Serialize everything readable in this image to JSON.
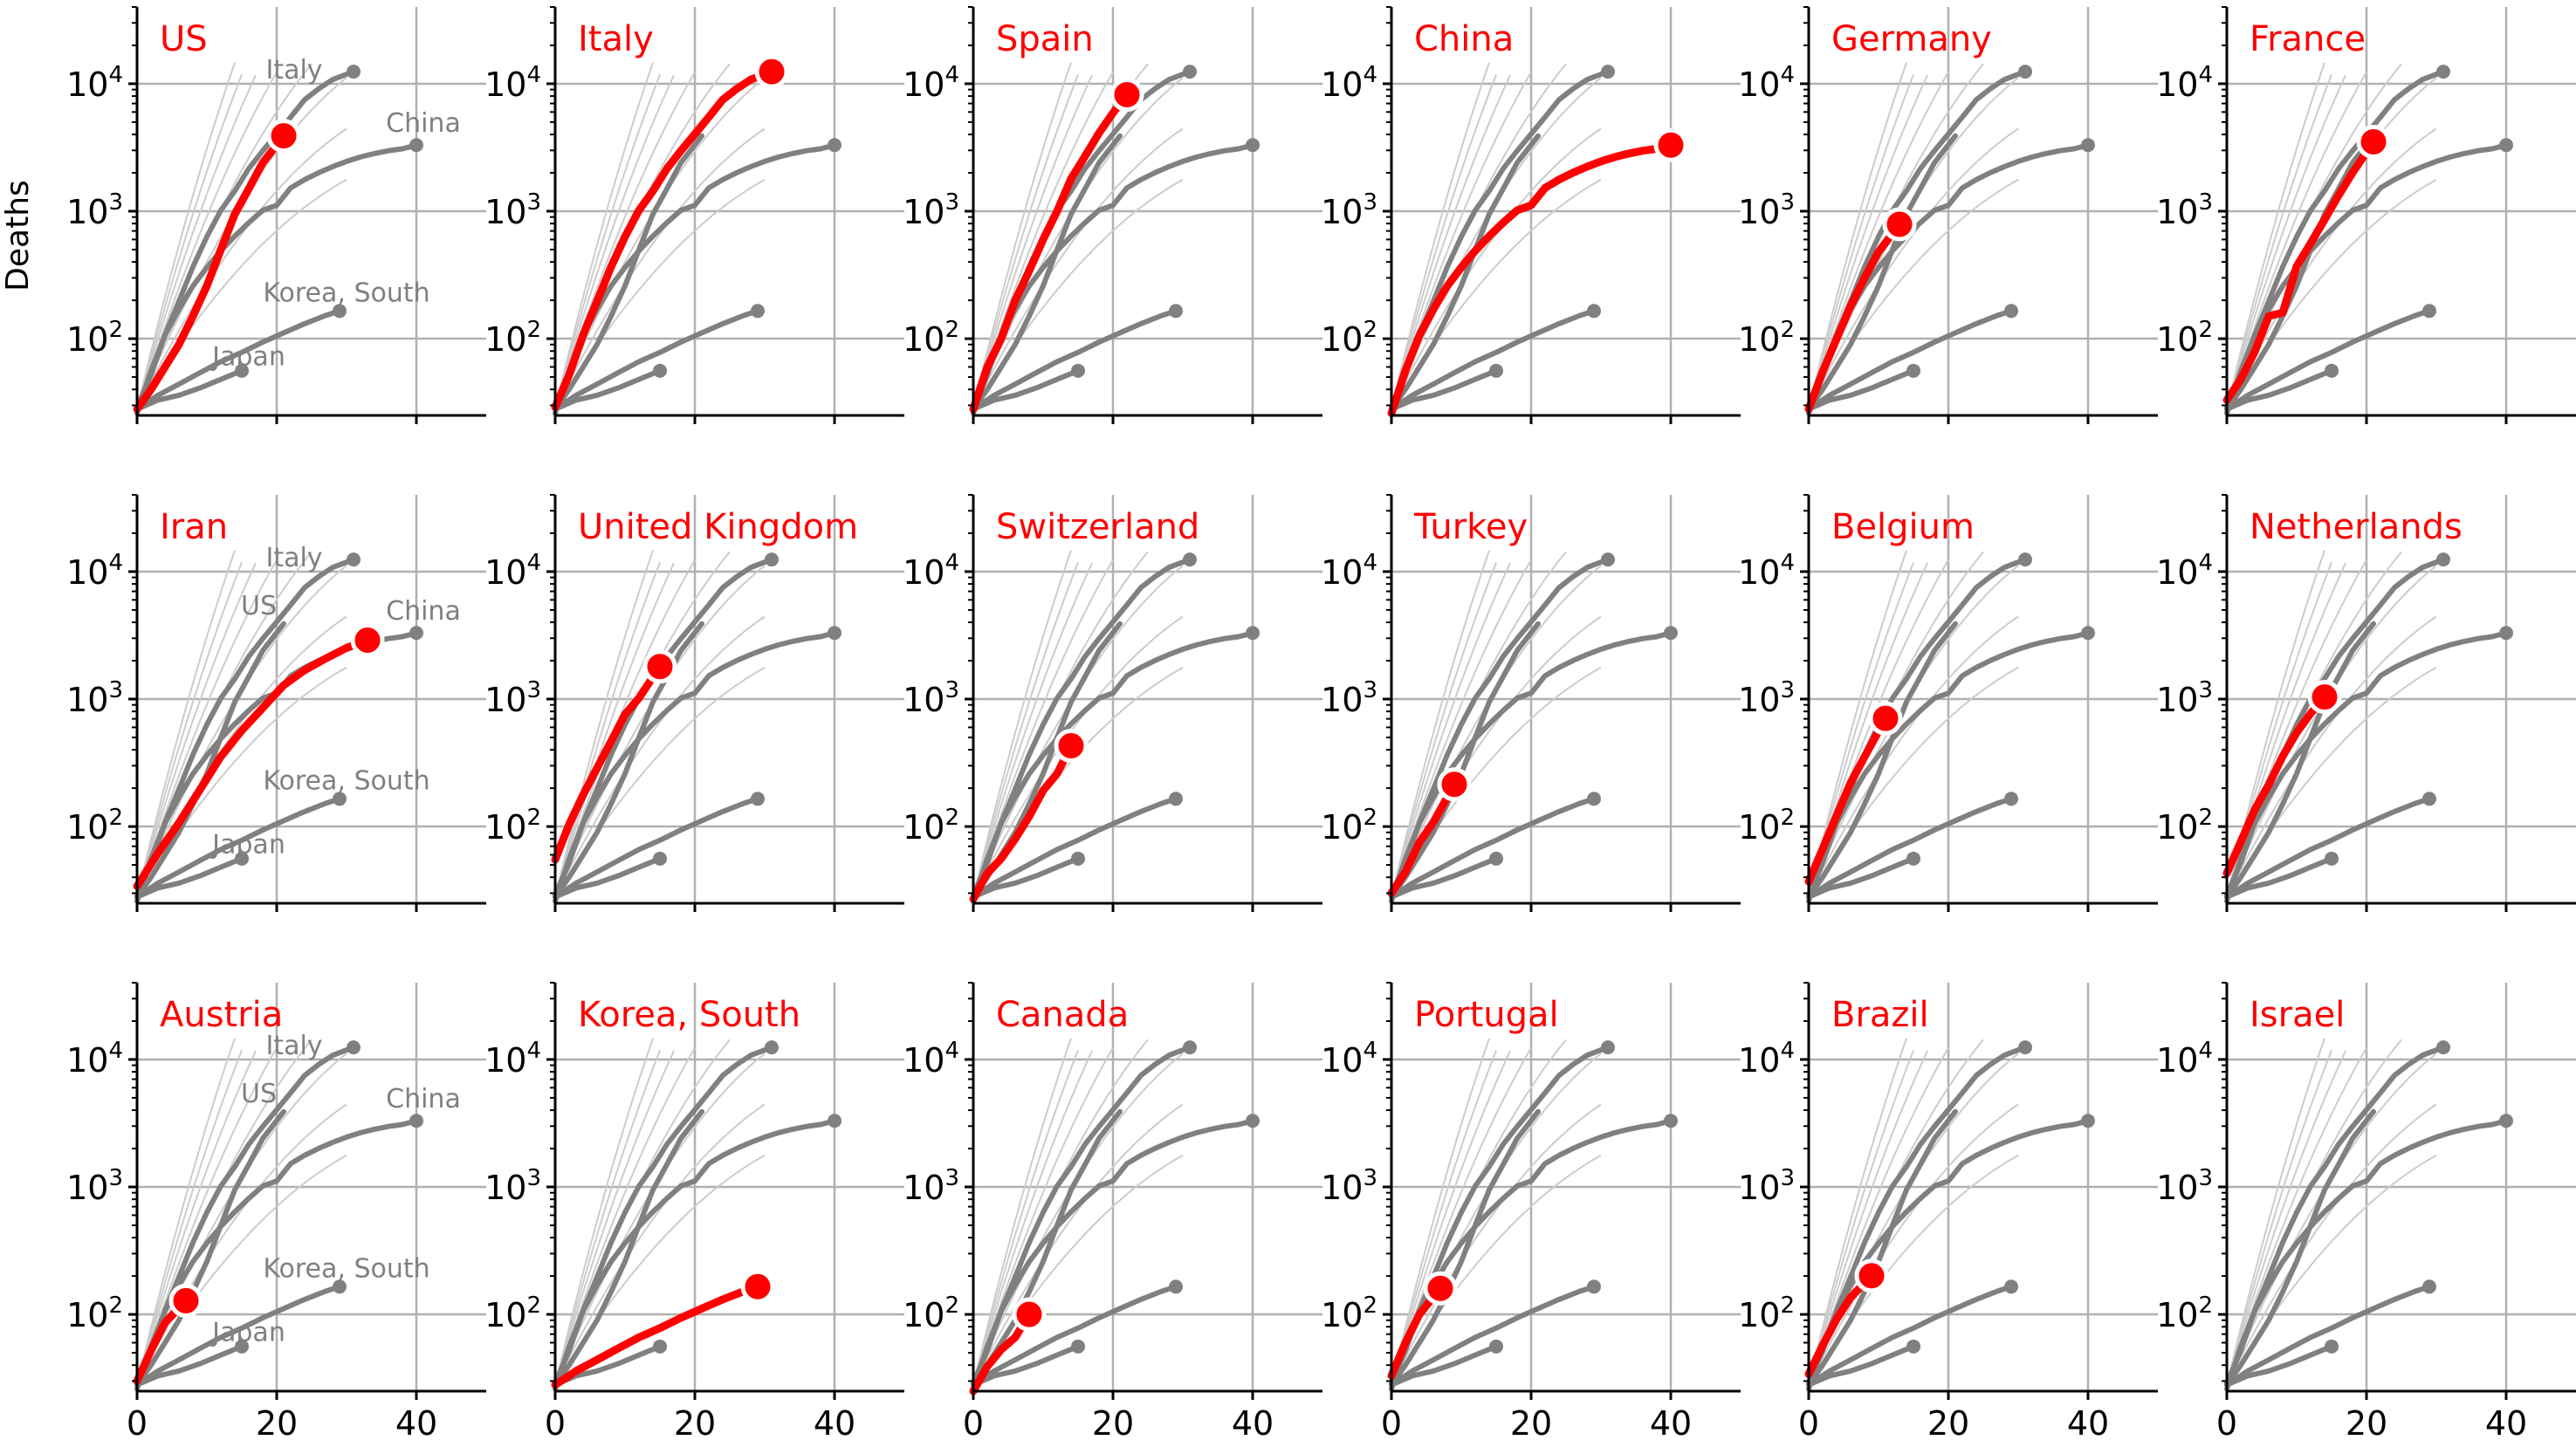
{
  "chart_data": {
    "type": "line",
    "grid_type": "small-multiples",
    "ylabel": "Deaths",
    "yscale": "log",
    "ylim": [
      25,
      40000
    ],
    "xlim": [
      0,
      50
    ],
    "xticks": [
      0,
      20,
      40
    ],
    "yticks": [
      100,
      1000,
      10000
    ],
    "ytick_labels": [
      {
        "base": "10",
        "exp": "2"
      },
      {
        "base": "10",
        "exp": "3"
      },
      {
        "base": "10",
        "exp": "4"
      }
    ],
    "grid": true,
    "colors": {
      "highlight": "#ff0000",
      "reference": "#808080",
      "background_lines": "#cccccc"
    },
    "reference_labels": [
      "Italy",
      "China",
      "Korea, South",
      "Japan",
      "US"
    ],
    "reference_series": [
      {
        "name": "Italy",
        "x": [
          0,
          2,
          4,
          6,
          8,
          10,
          12,
          14,
          16,
          18,
          20,
          22,
          24,
          26,
          28,
          31
        ],
        "y": [
          29,
          52,
          107,
          197,
          366,
          631,
          1016,
          1441,
          2158,
          2978,
          4032,
          5476,
          7503,
          9134,
          10779,
          12428
        ]
      },
      {
        "name": "US",
        "x": [
          0,
          2,
          4,
          6,
          8,
          10,
          12,
          14,
          16,
          18,
          21
        ],
        "y": [
          28,
          40,
          60,
          90,
          150,
          260,
          500,
          950,
          1500,
          2400,
          3900
        ]
      },
      {
        "name": "China",
        "x": [
          0,
          2,
          4,
          6,
          8,
          10,
          12,
          14,
          16,
          18,
          20,
          22,
          24,
          26,
          28,
          30,
          32,
          34,
          36,
          38,
          40
        ],
        "y": [
          26,
          56,
          106,
          170,
          259,
          362,
          490,
          638,
          813,
          1016,
          1113,
          1523,
          1770,
          2004,
          2236,
          2459,
          2663,
          2835,
          2981,
          3085,
          3300
        ]
      },
      {
        "name": "Korea, South",
        "x": [
          0,
          3,
          6,
          9,
          12,
          15,
          18,
          21,
          24,
          27,
          29
        ],
        "y": [
          28,
          36,
          44,
          54,
          66,
          78,
          94,
          111,
          131,
          152,
          165
        ]
      },
      {
        "name": "Japan",
        "x": [
          0,
          3,
          6,
          9,
          12,
          15
        ],
        "y": [
          28,
          33,
          36,
          41,
          48,
          56
        ]
      }
    ],
    "panels": [
      {
        "country": "US",
        "x": [
          0,
          2,
          4,
          6,
          8,
          10,
          12,
          14,
          16,
          18,
          21
        ],
        "y": [
          28,
          40,
          60,
          90,
          150,
          260,
          500,
          950,
          1500,
          2400,
          3900
        ],
        "show_labels": [
          "Italy",
          "China",
          "Korea, South",
          "Japan"
        ]
      },
      {
        "country": "Italy",
        "x": [
          0,
          2,
          4,
          6,
          8,
          10,
          12,
          14,
          16,
          18,
          20,
          22,
          24,
          26,
          28,
          31
        ],
        "y": [
          29,
          52,
          107,
          197,
          366,
          631,
          1016,
          1441,
          2158,
          2978,
          4032,
          5476,
          7503,
          9134,
          10779,
          12428
        ],
        "show_labels": []
      },
      {
        "country": "Spain",
        "x": [
          0,
          2,
          4,
          6,
          8,
          10,
          12,
          14,
          16,
          18,
          20,
          22
        ],
        "y": [
          28,
          60,
          100,
          200,
          340,
          600,
          1000,
          1800,
          2700,
          4100,
          5900,
          8200
        ],
        "show_labels": []
      },
      {
        "country": "China",
        "x": [
          0,
          2,
          4,
          6,
          8,
          10,
          12,
          14,
          16,
          18,
          20,
          22,
          24,
          26,
          28,
          30,
          32,
          34,
          36,
          38,
          40
        ],
        "y": [
          26,
          56,
          106,
          170,
          259,
          362,
          490,
          638,
          813,
          1016,
          1113,
          1523,
          1770,
          2004,
          2236,
          2459,
          2663,
          2835,
          2981,
          3085,
          3300
        ],
        "show_labels": []
      },
      {
        "country": "Germany",
        "x": [
          0,
          2,
          4,
          6,
          8,
          10,
          13
        ],
        "y": [
          28,
          55,
          100,
          180,
          300,
          480,
          790
        ],
        "show_labels": []
      },
      {
        "country": "France",
        "x": [
          0,
          2,
          4,
          6,
          8,
          10,
          12,
          14,
          16,
          18,
          21
        ],
        "y": [
          33,
          48,
          79,
          150,
          160,
          370,
          560,
          860,
          1330,
          2000,
          3500
        ],
        "show_labels": []
      },
      {
        "country": "Iran",
        "x": [
          0,
          3,
          6,
          9,
          12,
          15,
          18,
          21,
          24,
          27,
          30,
          33
        ],
        "y": [
          34,
          62,
          107,
          194,
          354,
          568,
          853,
          1284,
          1685,
          2077,
          2517,
          2900
        ],
        "show_labels": [
          "Italy",
          "US",
          "China",
          "Korea, South",
          "Japan"
        ]
      },
      {
        "country": "United Kingdom",
        "x": [
          0,
          2,
          4,
          6,
          8,
          10,
          12,
          15
        ],
        "y": [
          55,
          104,
          177,
          288,
          465,
          759,
          1019,
          1800
        ],
        "show_labels": []
      },
      {
        "country": "Switzerland",
        "x": [
          0,
          2,
          4,
          6,
          8,
          10,
          12,
          14
        ],
        "y": [
          27,
          43,
          56,
          80,
          120,
          192,
          260,
          430
        ],
        "show_labels": []
      },
      {
        "country": "Turkey",
        "x": [
          0,
          2,
          4,
          6,
          9
        ],
        "y": [
          30,
          44,
          75,
          108,
          214
        ],
        "show_labels": []
      },
      {
        "country": "Belgium",
        "x": [
          0,
          2,
          4,
          6,
          8,
          11
        ],
        "y": [
          37,
          67,
          122,
          220,
          353,
          705
        ],
        "show_labels": []
      },
      {
        "country": "Netherlands",
        "x": [
          0,
          2,
          4,
          6,
          8,
          10,
          12,
          14
        ],
        "y": [
          43,
          76,
          136,
          213,
          356,
          546,
          771,
          1039
        ],
        "show_labels": []
      },
      {
        "country": "Austria",
        "x": [
          0,
          2,
          4,
          7
        ],
        "y": [
          30,
          52,
          86,
          128
        ],
        "show_labels": [
          "Italy",
          "US",
          "China",
          "Korea, South",
          "Japan"
        ]
      },
      {
        "country": "Korea, South",
        "x": [
          0,
          3,
          6,
          9,
          12,
          15,
          18,
          21,
          24,
          27,
          29
        ],
        "y": [
          28,
          36,
          44,
          54,
          66,
          78,
          94,
          111,
          131,
          152,
          165
        ],
        "show_labels": []
      },
      {
        "country": "Canada",
        "x": [
          0,
          2,
          4,
          6,
          8
        ],
        "y": [
          25,
          39,
          53,
          66,
          100
        ],
        "show_labels": []
      },
      {
        "country": "Portugal",
        "x": [
          0,
          2,
          4,
          7
        ],
        "y": [
          33,
          60,
          100,
          160
        ],
        "show_labels": []
      },
      {
        "country": "Brazil",
        "x": [
          0,
          2,
          4,
          6,
          9
        ],
        "y": [
          34,
          57,
          92,
          136,
          201
        ],
        "show_labels": []
      },
      {
        "country": "Israel",
        "x": [],
        "y": [],
        "show_labels": []
      }
    ]
  }
}
